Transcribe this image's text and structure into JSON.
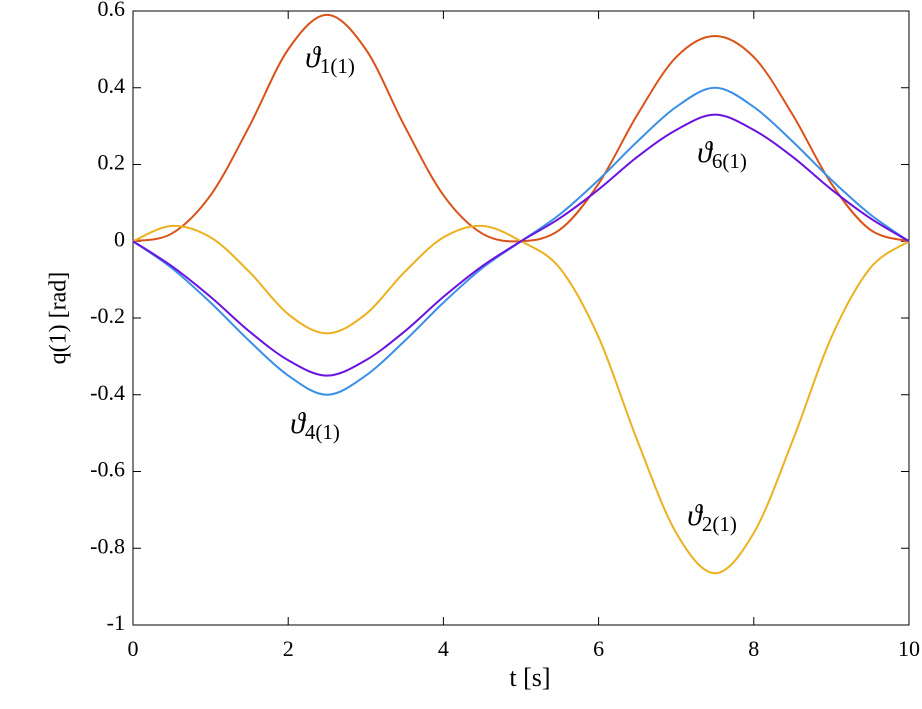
{
  "chart_data": {
    "type": "line",
    "x_label": "t [s]",
    "y_label": "q(1) [rad]",
    "x": [
      0,
      0.5,
      1,
      1.5,
      2,
      2.5,
      3,
      3.5,
      4,
      4.5,
      5,
      5.5,
      6,
      6.5,
      7,
      7.5,
      8,
      8.5,
      9,
      9.5,
      10
    ],
    "series": [
      {
        "name": "ϑ1(1)",
        "color": "#d95319",
        "values": [
          0,
          0.02,
          0.12,
          0.3,
          0.5,
          0.59,
          0.5,
          0.3,
          0.12,
          0.02,
          0,
          0.03,
          0.15,
          0.33,
          0.48,
          0.535,
          0.48,
          0.33,
          0.15,
          0.03,
          0
        ]
      },
      {
        "name": "ϑ2(1)",
        "color": "#edb120",
        "values": [
          0,
          0.04,
          0.01,
          -0.08,
          -0.19,
          -0.24,
          -0.19,
          -0.08,
          0.01,
          0.04,
          0,
          -0.07,
          -0.25,
          -0.52,
          -0.76,
          -0.865,
          -0.76,
          -0.52,
          -0.25,
          -0.07,
          0
        ]
      },
      {
        "name": "ϑ4(1)",
        "color": "#3b8fe6",
        "values": [
          0,
          -0.07,
          -0.16,
          -0.26,
          -0.35,
          -0.4,
          -0.35,
          -0.26,
          -0.16,
          -0.07,
          0,
          0.07,
          0.16,
          0.26,
          0.35,
          0.4,
          0.35,
          0.26,
          0.16,
          0.07,
          0
        ]
      },
      {
        "name": "ϑ6(1)",
        "color": "#6a12e0",
        "values": [
          0,
          -0.065,
          -0.145,
          -0.235,
          -0.31,
          -0.35,
          -0.31,
          -0.235,
          -0.145,
          -0.065,
          0,
          0.06,
          0.135,
          0.22,
          0.29,
          0.33,
          0.29,
          0.22,
          0.135,
          0.06,
          0
        ]
      }
    ],
    "xlim": [
      0,
      10
    ],
    "xticks": [
      0,
      2,
      4,
      6,
      8,
      10
    ],
    "ylim": [
      -1,
      0.6
    ],
    "yticks": [
      -1,
      -0.8,
      -0.6,
      -0.4,
      -0.2,
      0,
      0.2,
      0.4,
      0.6
    ]
  }
}
